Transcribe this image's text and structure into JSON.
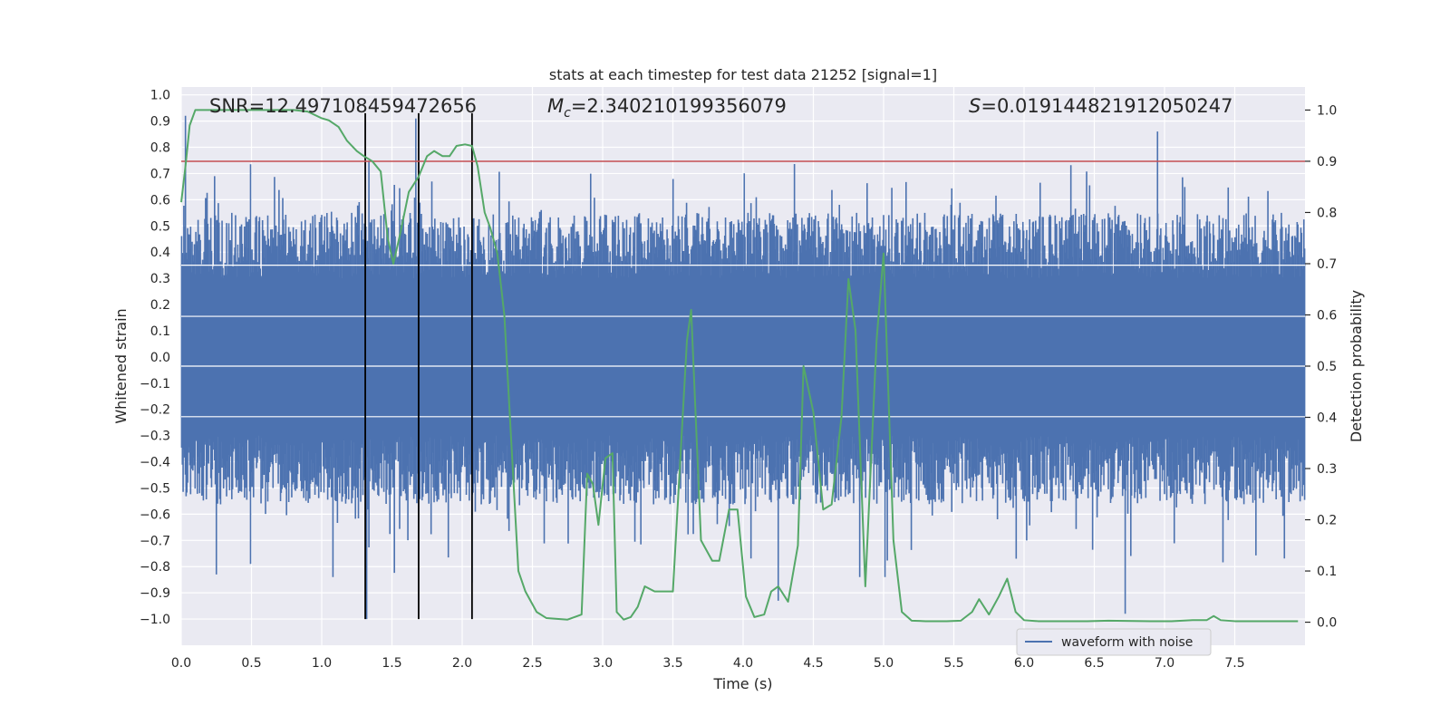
{
  "chart_data": {
    "type": "line",
    "title": "stats at each timestep for test data 21252 [signal=1]",
    "xlabel": "Time (s)",
    "ylabel": "Whitened strain",
    "y2label": "Detection probability",
    "xlim": [
      0.0,
      8.0
    ],
    "ylim": [
      -1.1,
      1.03
    ],
    "y2lim": [
      -0.045,
      1.045
    ],
    "xticks": [
      "0.0",
      "0.5",
      "1.0",
      "1.5",
      "2.0",
      "2.5",
      "3.0",
      "3.5",
      "4.0",
      "4.5",
      "5.0",
      "5.5",
      "6.0",
      "6.5",
      "7.0",
      "7.5"
    ],
    "yticks": [
      "1.0",
      "0.9",
      "0.8",
      "0.7",
      "0.6",
      "0.5",
      "0.4",
      "0.3",
      "0.2",
      "0.1",
      "0.0",
      "−0.1",
      "−0.2",
      "−0.3",
      "−0.4",
      "−0.5",
      "−0.6",
      "−0.7",
      "−0.8",
      "−0.9",
      "−1.0"
    ],
    "y2ticks": [
      "1.0",
      "0.9",
      "0.8",
      "0.7",
      "0.6",
      "0.5",
      "0.4",
      "0.3",
      "0.2",
      "0.1",
      "0.0"
    ],
    "annotations": {
      "snr": "SNR=12.497108459472656",
      "mc_symbol": "M",
      "mc_sub": "c",
      "mc_value": "=2.340210199356079",
      "s_symbol": "S",
      "s_value": "=0.019144821912050247"
    },
    "legend": {
      "label": "waveform with noise",
      "loc": "lower-right"
    },
    "series": [
      {
        "name": "waveform with noise",
        "color": "#4c72b0",
        "style": "dense noise band",
        "core_amplitude": 0.3,
        "typical_peak": 0.55,
        "notable_peaks": [
          {
            "t": 0.03,
            "v": 0.92
          },
          {
            "t": 1.67,
            "v": 0.91
          },
          {
            "t": 6.95,
            "v": 0.86
          },
          {
            "t": 1.32,
            "v": -1.0
          },
          {
            "t": 6.72,
            "v": -0.98
          },
          {
            "t": 2.07,
            "v": -0.86
          },
          {
            "t": 4.25,
            "v": -0.93
          },
          {
            "t": 1.08,
            "v": -0.84
          },
          {
            "t": 0.25,
            "v": -0.83
          },
          {
            "t": 4.83,
            "v": -0.84
          },
          {
            "t": 5.01,
            "v": -0.84
          }
        ]
      },
      {
        "name": "detection probability",
        "color": "#55a868",
        "axis": "right",
        "x": [
          0.0,
          0.03,
          0.06,
          0.1,
          0.2,
          0.4,
          0.6,
          0.8,
          0.9,
          1.0,
          1.05,
          1.12,
          1.18,
          1.25,
          1.3,
          1.36,
          1.42,
          1.47,
          1.51,
          1.56,
          1.62,
          1.69,
          1.75,
          1.8,
          1.86,
          1.91,
          1.96,
          2.02,
          2.07,
          2.11,
          2.16,
          2.2,
          2.25,
          2.3,
          2.35,
          2.4,
          2.45,
          2.53,
          2.6,
          2.75,
          2.85,
          2.89,
          2.93,
          2.97,
          3.02,
          3.07,
          3.1,
          3.15,
          3.2,
          3.25,
          3.3,
          3.37,
          3.42,
          3.5,
          3.6,
          3.63,
          3.7,
          3.78,
          3.83,
          3.9,
          3.96,
          4.02,
          4.08,
          4.15,
          4.2,
          4.25,
          4.32,
          4.39,
          4.43,
          4.5,
          4.57,
          4.63,
          4.7,
          4.75,
          4.8,
          4.87,
          4.95,
          5.0,
          5.07,
          5.13,
          5.2,
          5.3,
          5.45,
          5.55,
          5.63,
          5.68,
          5.75,
          5.82,
          5.88,
          5.94,
          6.0,
          6.1,
          6.3,
          6.45,
          6.6,
          6.9,
          7.05,
          7.2,
          7.3,
          7.35,
          7.4,
          7.5,
          7.7,
          7.85,
          7.95
        ],
        "y": [
          0.82,
          0.89,
          0.97,
          1.0,
          1.0,
          1.0,
          1.0,
          1.0,
          0.997,
          0.984,
          0.98,
          0.967,
          0.94,
          0.92,
          0.91,
          0.9,
          0.88,
          0.75,
          0.7,
          0.76,
          0.84,
          0.87,
          0.91,
          0.92,
          0.91,
          0.91,
          0.93,
          0.933,
          0.93,
          0.89,
          0.8,
          0.77,
          0.72,
          0.6,
          0.35,
          0.1,
          0.06,
          0.02,
          0.008,
          0.005,
          0.015,
          0.29,
          0.27,
          0.19,
          0.32,
          0.33,
          0.02,
          0.005,
          0.01,
          0.03,
          0.07,
          0.06,
          0.06,
          0.06,
          0.55,
          0.61,
          0.16,
          0.12,
          0.12,
          0.22,
          0.22,
          0.05,
          0.01,
          0.015,
          0.06,
          0.07,
          0.04,
          0.15,
          0.5,
          0.41,
          0.22,
          0.23,
          0.4,
          0.67,
          0.57,
          0.07,
          0.55,
          0.72,
          0.16,
          0.02,
          0.003,
          0.002,
          0.002,
          0.003,
          0.02,
          0.045,
          0.015,
          0.05,
          0.085,
          0.02,
          0.004,
          0.002,
          0.002,
          0.002,
          0.003,
          0.002,
          0.002,
          0.004,
          0.004,
          0.012,
          0.004,
          0.002,
          0.002,
          0.002,
          0.002
        ]
      }
    ],
    "threshold": {
      "value": 0.9,
      "axis": "right",
      "color": "#c44e52"
    },
    "event_markers": {
      "x": [
        1.31,
        1.69,
        2.07
      ],
      "ymin": -1.0,
      "ymax": 0.93,
      "color": "#000000"
    }
  }
}
